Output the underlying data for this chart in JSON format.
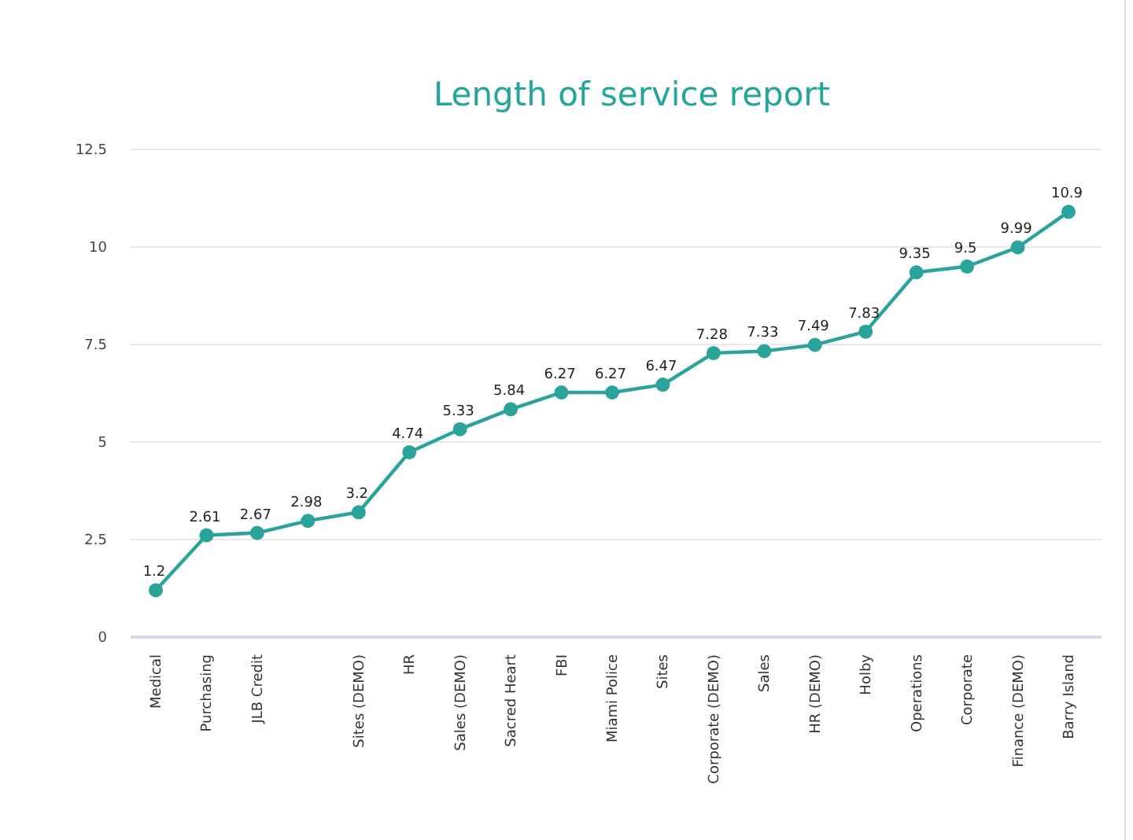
{
  "chart_data": {
    "type": "line",
    "title": "Length of service report",
    "categories": [
      "Medical",
      "Purchasing",
      "JLB Credit",
      null,
      "Sites (DEMO)",
      "HR",
      "Sales (DEMO)",
      "Sacred Heart",
      "FBI",
      "Miami Police",
      "Sites",
      "Corporate (DEMO)",
      "Sales",
      "HR (DEMO)",
      "Holby",
      "Operations",
      "Corporate",
      "Finance (DEMO)",
      "Barry Island"
    ],
    "series": [
      {
        "color": "#2aa39b",
        "values": [
          1.2,
          2.61,
          2.67,
          2.98,
          3.2,
          4.74,
          5.33,
          5.84,
          6.27,
          6.27,
          6.47,
          7.28,
          7.33,
          7.49,
          7.83,
          9.35,
          9.5,
          9.99,
          10.9
        ]
      }
    ],
    "ylim": [
      0,
      12.5
    ],
    "yticks": [
      0,
      {
        "value": 2.5,
        "label": "2.5"
      },
      5,
      {
        "value": 7.5,
        "label": "7.5"
      },
      10,
      {
        "value": 12.5,
        "label": "12.5"
      }
    ],
    "grid": "y",
    "marker": "circle",
    "line_style": "solid",
    "data_labels": true
  }
}
